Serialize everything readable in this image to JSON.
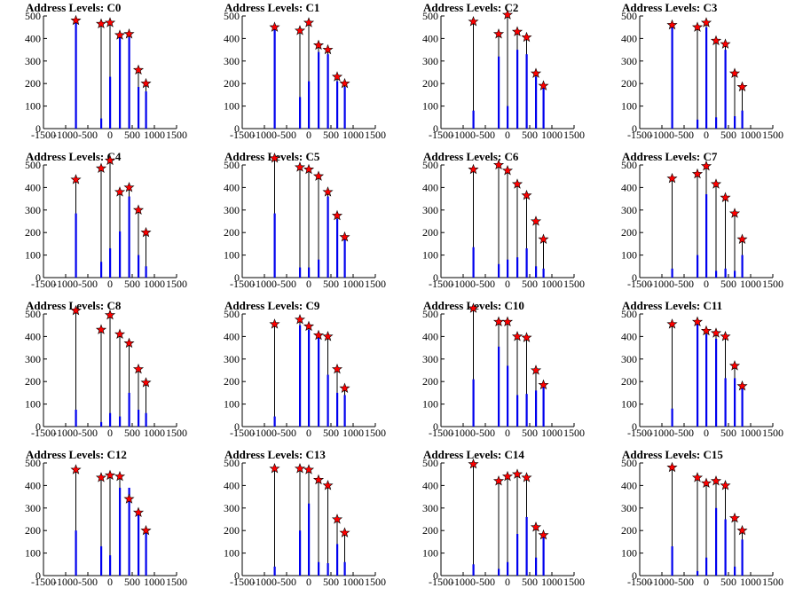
{
  "chart_data": [
    {
      "type": "bar",
      "title": "Address Levels: C0",
      "xlim": [
        -1500,
        1500
      ],
      "ylim": [
        0,
        500
      ],
      "xticks": [
        "-1500",
        "-1000",
        "-500",
        "0",
        "500",
        "1000",
        "1500"
      ],
      "yticks": [
        "0",
        "100",
        "200",
        "300",
        "400",
        "500"
      ],
      "peaks": [
        [
          -770,
          480
        ],
        [
          -200,
          465
        ],
        [
          0,
          470
        ],
        [
          220,
          415
        ],
        [
          430,
          420
        ],
        [
          640,
          260
        ],
        [
          810,
          200
        ]
      ],
      "blue": [
        [
          -770,
          470
        ],
        [
          -200,
          45
        ],
        [
          0,
          230
        ],
        [
          220,
          405
        ],
        [
          430,
          405
        ],
        [
          640,
          185
        ],
        [
          810,
          165
        ]
      ]
    },
    {
      "type": "bar",
      "title": "Address Levels: C1",
      "xlim": [
        -1500,
        1500
      ],
      "ylim": [
        0,
        500
      ],
      "xticks": [
        "-1500",
        "-1000",
        "-500",
        "0",
        "500",
        "1000",
        "1500"
      ],
      "yticks": [
        "0",
        "100",
        "200",
        "300",
        "400",
        "500"
      ],
      "peaks": [
        [
          -770,
          450
        ],
        [
          -200,
          435
        ],
        [
          0,
          470
        ],
        [
          220,
          370
        ],
        [
          430,
          350
        ],
        [
          640,
          230
        ],
        [
          810,
          200
        ]
      ],
      "blue": [
        [
          -770,
          440
        ],
        [
          -200,
          140
        ],
        [
          0,
          210
        ],
        [
          220,
          340
        ],
        [
          430,
          330
        ],
        [
          640,
          210
        ],
        [
          810,
          185
        ]
      ]
    },
    {
      "type": "bar",
      "title": "Address Levels: C2",
      "xlim": [
        -1500,
        1500
      ],
      "ylim": [
        0,
        500
      ],
      "xticks": [
        "-1500",
        "-1000",
        "-500",
        "0",
        "500",
        "1000",
        "1500"
      ],
      "yticks": [
        "0",
        "100",
        "200",
        "300",
        "400",
        "500"
      ],
      "peaks": [
        [
          -770,
          475
        ],
        [
          -200,
          420
        ],
        [
          0,
          505
        ],
        [
          220,
          430
        ],
        [
          430,
          405
        ],
        [
          640,
          245
        ],
        [
          810,
          190
        ]
      ],
      "blue": [
        [
          -770,
          80
        ],
        [
          -200,
          320
        ],
        [
          0,
          100
        ],
        [
          220,
          350
        ],
        [
          430,
          330
        ],
        [
          640,
          230
        ],
        [
          810,
          185
        ]
      ]
    },
    {
      "type": "bar",
      "title": "Address Levels: C3",
      "xlim": [
        -1500,
        1500
      ],
      "ylim": [
        0,
        500
      ],
      "xticks": [
        "-1500",
        "-1000",
        "-500",
        "0",
        "500",
        "1000",
        "1500"
      ],
      "yticks": [
        "0",
        "100",
        "200",
        "300",
        "400",
        "500"
      ],
      "peaks": [
        [
          -770,
          460
        ],
        [
          -200,
          450
        ],
        [
          0,
          470
        ],
        [
          220,
          390
        ],
        [
          430,
          375
        ],
        [
          640,
          245
        ],
        [
          810,
          185
        ]
      ],
      "blue": [
        [
          -770,
          450
        ],
        [
          -200,
          40
        ],
        [
          0,
          450
        ],
        [
          220,
          50
        ],
        [
          430,
          350
        ],
        [
          640,
          55
        ],
        [
          810,
          80
        ]
      ]
    },
    {
      "type": "bar",
      "title": "Address Levels: C4",
      "xlim": [
        -1500,
        1500
      ],
      "ylim": [
        0,
        500
      ],
      "xticks": [
        "-1500",
        "-1000",
        "-500",
        "0",
        "500",
        "1000",
        "1500"
      ],
      "yticks": [
        "0",
        "100",
        "200",
        "300",
        "400",
        "500"
      ],
      "peaks": [
        [
          -770,
          435
        ],
        [
          -200,
          485
        ],
        [
          0,
          520
        ],
        [
          220,
          380
        ],
        [
          430,
          400
        ],
        [
          640,
          300
        ],
        [
          810,
          200
        ]
      ],
      "blue": [
        [
          -770,
          285
        ],
        [
          -200,
          70
        ],
        [
          0,
          130
        ],
        [
          220,
          205
        ],
        [
          430,
          360
        ],
        [
          640,
          100
        ],
        [
          810,
          50
        ]
      ]
    },
    {
      "type": "bar",
      "title": "Address Levels: C5",
      "xlim": [
        -1500,
        1500
      ],
      "ylim": [
        0,
        500
      ],
      "xticks": [
        "-1500",
        "-1000",
        "-500",
        "0",
        "500",
        "1000",
        "1500"
      ],
      "yticks": [
        "0",
        "100",
        "200",
        "300",
        "400",
        "500"
      ],
      "peaks": [
        [
          -770,
          530
        ],
        [
          -200,
          490
        ],
        [
          0,
          480
        ],
        [
          220,
          450
        ],
        [
          430,
          380
        ],
        [
          640,
          275
        ],
        [
          810,
          180
        ]
      ],
      "blue": [
        [
          -770,
          285
        ],
        [
          -200,
          45
        ],
        [
          0,
          45
        ],
        [
          220,
          80
        ],
        [
          430,
          360
        ],
        [
          640,
          260
        ],
        [
          810,
          170
        ]
      ]
    },
    {
      "type": "bar",
      "title": "Address Levels: C6",
      "xlim": [
        -1500,
        1500
      ],
      "ylim": [
        0,
        500
      ],
      "xticks": [
        "-1500",
        "-1000",
        "-500",
        "0",
        "500",
        "1000",
        "1500"
      ],
      "yticks": [
        "0",
        "100",
        "200",
        "300",
        "400",
        "500"
      ],
      "peaks": [
        [
          -770,
          480
        ],
        [
          -200,
          500
        ],
        [
          0,
          475
        ],
        [
          220,
          415
        ],
        [
          430,
          365
        ],
        [
          640,
          250
        ],
        [
          810,
          170
        ]
      ],
      "blue": [
        [
          -770,
          135
        ],
        [
          -200,
          60
        ],
        [
          0,
          80
        ],
        [
          220,
          90
        ],
        [
          430,
          130
        ],
        [
          640,
          50
        ],
        [
          810,
          40
        ]
      ]
    },
    {
      "type": "bar",
      "title": "Address Levels: C7",
      "xlim": [
        -1500,
        1500
      ],
      "ylim": [
        0,
        500
      ],
      "xticks": [
        "-1500",
        "-1000",
        "-500",
        "0",
        "500",
        "1000",
        "1500"
      ],
      "yticks": [
        "0",
        "100",
        "200",
        "300",
        "400",
        "500"
      ],
      "peaks": [
        [
          -770,
          440
        ],
        [
          -200,
          460
        ],
        [
          0,
          495
        ],
        [
          220,
          415
        ],
        [
          430,
          355
        ],
        [
          640,
          285
        ],
        [
          810,
          170
        ]
      ],
      "blue": [
        [
          -770,
          40
        ],
        [
          -200,
          100
        ],
        [
          0,
          370
        ],
        [
          220,
          30
        ],
        [
          430,
          40
        ],
        [
          640,
          30
        ],
        [
          810,
          100
        ]
      ]
    },
    {
      "type": "bar",
      "title": "Address Levels: C8",
      "xlim": [
        -1500,
        1500
      ],
      "ylim": [
        0,
        500
      ],
      "xticks": [
        "-1500",
        "-1000",
        "-500",
        "0",
        "500",
        "1000",
        "1500"
      ],
      "yticks": [
        "0",
        "100",
        "200",
        "300",
        "400",
        "500"
      ],
      "peaks": [
        [
          -770,
          515
        ],
        [
          -200,
          430
        ],
        [
          0,
          495
        ],
        [
          220,
          410
        ],
        [
          430,
          370
        ],
        [
          640,
          255
        ],
        [
          810,
          195
        ]
      ],
      "blue": [
        [
          -770,
          75
        ],
        [
          -200,
          20
        ],
        [
          0,
          60
        ],
        [
          220,
          45
        ],
        [
          430,
          150
        ],
        [
          640,
          75
        ],
        [
          810,
          60
        ]
      ]
    },
    {
      "type": "bar",
      "title": "Address Levels: C9",
      "xlim": [
        -1500,
        1500
      ],
      "ylim": [
        0,
        500
      ],
      "xticks": [
        "-1500",
        "-1000",
        "-500",
        "0",
        "500",
        "1000",
        "1500"
      ],
      "yticks": [
        "0",
        "100",
        "200",
        "300",
        "400",
        "500"
      ],
      "peaks": [
        [
          -770,
          455
        ],
        [
          -200,
          475
        ],
        [
          0,
          445
        ],
        [
          220,
          405
        ],
        [
          430,
          400
        ],
        [
          640,
          255
        ],
        [
          810,
          170
        ]
      ],
      "blue": [
        [
          -770,
          45
        ],
        [
          -200,
          450
        ],
        [
          0,
          430
        ],
        [
          220,
          400
        ],
        [
          430,
          230
        ],
        [
          640,
          150
        ],
        [
          810,
          140
        ]
      ]
    },
    {
      "type": "bar",
      "title": "Address Levels: C10",
      "xlim": [
        -1500,
        1500
      ],
      "ylim": [
        0,
        500
      ],
      "xticks": [
        "-1500",
        "-1000",
        "-500",
        "0",
        "500",
        "1000",
        "1500"
      ],
      "yticks": [
        "0",
        "100",
        "200",
        "300",
        "400",
        "500"
      ],
      "peaks": [
        [
          -770,
          525
        ],
        [
          -200,
          465
        ],
        [
          0,
          465
        ],
        [
          220,
          400
        ],
        [
          430,
          395
        ],
        [
          640,
          250
        ],
        [
          810,
          185
        ]
      ],
      "blue": [
        [
          -770,
          210
        ],
        [
          -200,
          355
        ],
        [
          0,
          270
        ],
        [
          220,
          140
        ],
        [
          430,
          145
        ],
        [
          640,
          160
        ],
        [
          810,
          180
        ]
      ]
    },
    {
      "type": "bar",
      "title": "Address Levels: C11",
      "xlim": [
        -1500,
        1500
      ],
      "ylim": [
        0,
        500
      ],
      "xticks": [
        "-1500",
        "-1000",
        "-500",
        "0",
        "500",
        "1000",
        "1500"
      ],
      "yticks": [
        "0",
        "100",
        "200",
        "300",
        "400",
        "500"
      ],
      "peaks": [
        [
          -770,
          455
        ],
        [
          -200,
          465
        ],
        [
          0,
          425
        ],
        [
          220,
          415
        ],
        [
          430,
          400
        ],
        [
          640,
          270
        ],
        [
          810,
          180
        ]
      ],
      "blue": [
        [
          -770,
          80
        ],
        [
          -200,
          470
        ],
        [
          0,
          410
        ],
        [
          220,
          390
        ],
        [
          430,
          215
        ],
        [
          640,
          215
        ],
        [
          810,
          175
        ]
      ]
    },
    {
      "type": "bar",
      "title": "Address Levels: C12",
      "xlim": [
        -1500,
        1500
      ],
      "ylim": [
        0,
        500
      ],
      "xticks": [
        "-1500",
        "-1000",
        "-500",
        "0",
        "500",
        "1000",
        "1500"
      ],
      "yticks": [
        "0",
        "100",
        "200",
        "300",
        "400",
        "500"
      ],
      "peaks": [
        [
          -770,
          470
        ],
        [
          -200,
          435
        ],
        [
          0,
          445
        ],
        [
          220,
          440
        ],
        [
          430,
          340
        ],
        [
          640,
          280
        ],
        [
          810,
          200
        ]
      ],
      "blue": [
        [
          -770,
          200
        ],
        [
          -200,
          130
        ],
        [
          0,
          90
        ],
        [
          220,
          390
        ],
        [
          430,
          390
        ],
        [
          640,
          270
        ],
        [
          810,
          190
        ]
      ]
    },
    {
      "type": "bar",
      "title": "Address Levels: C13",
      "xlim": [
        -1500,
        1500
      ],
      "ylim": [
        0,
        500
      ],
      "xticks": [
        "-1500",
        "-1000",
        "-500",
        "0",
        "500",
        "1000",
        "1500"
      ],
      "yticks": [
        "0",
        "100",
        "200",
        "300",
        "400",
        "500"
      ],
      "peaks": [
        [
          -770,
          475
        ],
        [
          -200,
          475
        ],
        [
          0,
          470
        ],
        [
          220,
          425
        ],
        [
          430,
          400
        ],
        [
          640,
          250
        ],
        [
          810,
          190
        ]
      ],
      "blue": [
        [
          -770,
          40
        ],
        [
          -200,
          200
        ],
        [
          0,
          320
        ],
        [
          220,
          60
        ],
        [
          430,
          55
        ],
        [
          640,
          140
        ],
        [
          810,
          60
        ]
      ]
    },
    {
      "type": "bar",
      "title": "Address Levels: C14",
      "xlim": [
        -1500,
        1500
      ],
      "ylim": [
        0,
        500
      ],
      "xticks": [
        "-1500",
        "-1000",
        "-500",
        "0",
        "500",
        "1000",
        "1500"
      ],
      "yticks": [
        "0",
        "100",
        "200",
        "300",
        "400",
        "500"
      ],
      "peaks": [
        [
          -770,
          495
        ],
        [
          -200,
          420
        ],
        [
          0,
          440
        ],
        [
          220,
          450
        ],
        [
          430,
          435
        ],
        [
          640,
          215
        ],
        [
          810,
          180
        ]
      ],
      "blue": [
        [
          -770,
          50
        ],
        [
          -200,
          30
        ],
        [
          0,
          60
        ],
        [
          220,
          185
        ],
        [
          430,
          260
        ],
        [
          640,
          80
        ],
        [
          810,
          170
        ]
      ]
    },
    {
      "type": "bar",
      "title": "Address Levels: C15",
      "xlim": [
        -1500,
        1500
      ],
      "ylim": [
        0,
        500
      ],
      "xticks": [
        "-1500",
        "-1000",
        "-500",
        "0",
        "500",
        "1000",
        "1500"
      ],
      "yticks": [
        "0",
        "100",
        "200",
        "300",
        "400",
        "500"
      ],
      "peaks": [
        [
          -770,
          480
        ],
        [
          -200,
          435
        ],
        [
          0,
          410
        ],
        [
          220,
          420
        ],
        [
          430,
          400
        ],
        [
          640,
          255
        ],
        [
          810,
          200
        ]
      ],
      "blue": [
        [
          -770,
          130
        ],
        [
          -200,
          20
        ],
        [
          0,
          80
        ],
        [
          220,
          300
        ],
        [
          430,
          250
        ],
        [
          640,
          40
        ],
        [
          810,
          160
        ]
      ]
    }
  ]
}
